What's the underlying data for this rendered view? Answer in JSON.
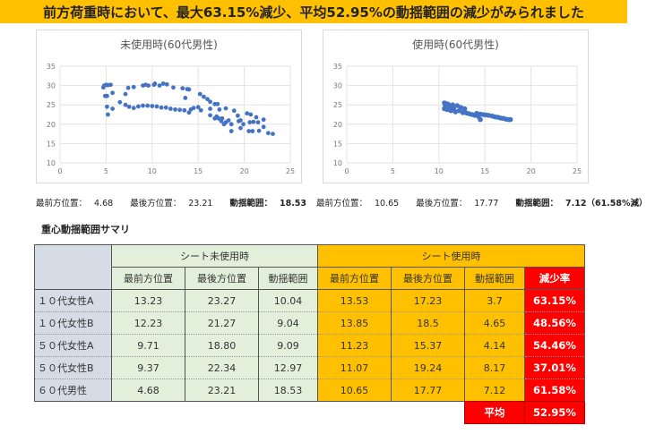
{
  "banner": {
    "title": "前方荷重時において、最大63.15%減少、平均52.95%の動揺範囲の減少がみられました"
  },
  "chart_data": [
    {
      "type": "scatter",
      "title": "未使用時(60代男性)",
      "xlim": [
        0,
        25
      ],
      "ylim": [
        10,
        35
      ],
      "xticks": [
        "0",
        "5",
        "10",
        "15",
        "20",
        "25"
      ],
      "yticks": [
        "10",
        "15",
        "20",
        "25",
        "30",
        "35"
      ],
      "grid": true,
      "color": "#4472c4",
      "points": [
        [
          4.7,
          29.5
        ],
        [
          4.8,
          30
        ],
        [
          5,
          30.2
        ],
        [
          5.2,
          30.1
        ],
        [
          5.5,
          30.2
        ],
        [
          4.9,
          27.3
        ],
        [
          5.1,
          27.3
        ],
        [
          5.1,
          24.5
        ],
        [
          5.2,
          22.5
        ],
        [
          5.7,
          24
        ],
        [
          5.7,
          28.1
        ],
        [
          6.5,
          25.7
        ],
        [
          7.1,
          27.8
        ],
        [
          7.4,
          29.4
        ],
        [
          8,
          29.6
        ],
        [
          9,
          30
        ],
        [
          9.3,
          30.2
        ],
        [
          9.6,
          30
        ],
        [
          10.2,
          30.2
        ],
        [
          10.3,
          30.5
        ],
        [
          10.8,
          30
        ],
        [
          11.2,
          30.5
        ],
        [
          11.6,
          30.3
        ],
        [
          12.3,
          29.5
        ],
        [
          13.3,
          29.3
        ],
        [
          13.8,
          29.1
        ],
        [
          14,
          29
        ],
        [
          13.6,
          26.8
        ],
        [
          7.1,
          25
        ],
        [
          7.5,
          24.5
        ],
        [
          8,
          24.2
        ],
        [
          8.5,
          24.6
        ],
        [
          9,
          24.8
        ],
        [
          9.5,
          24.8
        ],
        [
          10,
          24.7
        ],
        [
          10.5,
          24.6
        ],
        [
          11,
          24.3
        ],
        [
          11.5,
          24.3
        ],
        [
          12,
          24
        ],
        [
          12.5,
          23.8
        ],
        [
          13,
          23.7
        ],
        [
          13.5,
          23.6
        ],
        [
          14,
          23
        ],
        [
          14.2,
          23.8
        ],
        [
          14.5,
          24.2
        ],
        [
          15,
          24.4
        ],
        [
          15.3,
          23.6
        ],
        [
          15.2,
          27.8
        ],
        [
          15.6,
          27.1
        ],
        [
          16,
          26.5
        ],
        [
          16.3,
          25.8
        ],
        [
          16.8,
          25.2
        ],
        [
          17.1,
          25.2
        ],
        [
          16.3,
          24
        ],
        [
          16.3,
          22.3
        ],
        [
          16.8,
          21.5
        ],
        [
          17,
          22
        ],
        [
          17.2,
          21.5
        ],
        [
          17.5,
          20.8
        ],
        [
          17.8,
          20
        ],
        [
          18,
          20.5
        ],
        [
          18.3,
          21
        ],
        [
          18,
          24.1
        ],
        [
          18.6,
          18.2
        ],
        [
          18.6,
          20
        ],
        [
          18.9,
          23.5
        ],
        [
          19.3,
          22.2
        ],
        [
          19.4,
          20.8
        ],
        [
          19.6,
          19
        ],
        [
          19.6,
          21
        ],
        [
          19.9,
          20
        ],
        [
          20.3,
          22.8
        ],
        [
          20.5,
          18.2
        ],
        [
          20.6,
          20.5
        ],
        [
          20.7,
          22.5
        ],
        [
          20.9,
          18.2
        ],
        [
          21,
          20.6
        ],
        [
          21.3,
          21.8
        ],
        [
          21.5,
          20.5
        ],
        [
          21.6,
          18.3
        ],
        [
          22.1,
          21.2
        ],
        [
          22.1,
          19.3
        ],
        [
          22.6,
          17.7
        ],
        [
          23.1,
          17.5
        ],
        [
          17.3,
          23.8
        ],
        [
          17.6,
          21.5
        ]
      ]
    },
    {
      "type": "scatter",
      "title": "使用時(60代男性)",
      "xlim": [
        0,
        25
      ],
      "ylim": [
        10,
        35
      ],
      "xticks": [
        "0",
        "5",
        "10",
        "15",
        "20",
        "25"
      ],
      "yticks": [
        "10",
        "15",
        "20",
        "25",
        "30",
        "35"
      ],
      "grid": true,
      "color": "#4472c4",
      "points": [
        [
          10.6,
          25.5
        ],
        [
          10.6,
          24
        ],
        [
          10.7,
          24.8
        ],
        [
          10.8,
          25.3
        ],
        [
          10.9,
          23.8
        ],
        [
          11,
          25.2
        ],
        [
          11.2,
          24.5
        ],
        [
          11.3,
          23.5
        ],
        [
          11.5,
          25
        ],
        [
          11.6,
          24
        ],
        [
          11.8,
          23.2
        ],
        [
          12,
          24.8
        ],
        [
          12.2,
          23.5
        ],
        [
          12.4,
          24.3
        ],
        [
          12.6,
          23
        ],
        [
          12.8,
          24
        ],
        [
          13,
          22.9
        ],
        [
          13.3,
          22.7
        ],
        [
          13.6,
          22.5
        ],
        [
          13.9,
          22.3
        ],
        [
          14.1,
          22.8
        ],
        [
          14.3,
          22
        ],
        [
          14.5,
          21.2
        ],
        [
          14.5,
          22.6
        ],
        [
          14.8,
          22.5
        ],
        [
          15.1,
          22.4
        ],
        [
          15.4,
          22.3
        ],
        [
          15.8,
          22.1
        ],
        [
          16.1,
          21.9
        ],
        [
          16.4,
          21.8
        ],
        [
          16.7,
          21.6
        ],
        [
          17,
          21.5
        ],
        [
          17.3,
          21.3
        ],
        [
          17.6,
          21.2
        ],
        [
          17.77,
          21.2
        ]
      ]
    }
  ],
  "stats_left": {
    "front_label": "最前方位置：",
    "front": "4.68",
    "back_label": "最後方位置：",
    "back": "23.21",
    "range_label": "動揺範囲：",
    "range": "18.53"
  },
  "stats_right": {
    "front_label": "最前方位置：",
    "front": "10.65",
    "back_label": "最後方位置：",
    "back": "17.77",
    "range_label": "動揺範囲：",
    "range": "7.12（61.58%減）"
  },
  "summary": {
    "title": "重心動揺範囲サマリ",
    "group_unused": "シート未使用時",
    "group_used": "シート使用時",
    "columns": [
      "最前方位置",
      "最後方位置",
      "動揺範囲",
      "最前方位置",
      "最後方位置",
      "動揺範囲",
      "減少率"
    ],
    "rows": [
      {
        "label": "１０代女性A",
        "cells": [
          "13.23",
          "23.27",
          "10.04",
          "13.53",
          "17.23",
          "3.7",
          "63.15%"
        ]
      },
      {
        "label": "１０代女性B",
        "cells": [
          "12.23",
          "21.27",
          "9.04",
          "13.85",
          "18.5",
          "4.65",
          "48.56%"
        ]
      },
      {
        "label": "５０代女性A",
        "cells": [
          "9.71",
          "18.80",
          "9.09",
          "11.23",
          "15.37",
          "4.14",
          "54.46%"
        ]
      },
      {
        "label": "５０代女性B",
        "cells": [
          "9.37",
          "22.34",
          "12.97",
          "11.07",
          "19.24",
          "8.17",
          "37.01%"
        ]
      },
      {
        "label": "６０代男性",
        "cells": [
          "4.68",
          "23.21",
          "18.53",
          "10.65",
          "17.77",
          "7.12",
          "61.58%"
        ]
      }
    ],
    "avg_label": "平均",
    "avg_value": "52.95%"
  }
}
